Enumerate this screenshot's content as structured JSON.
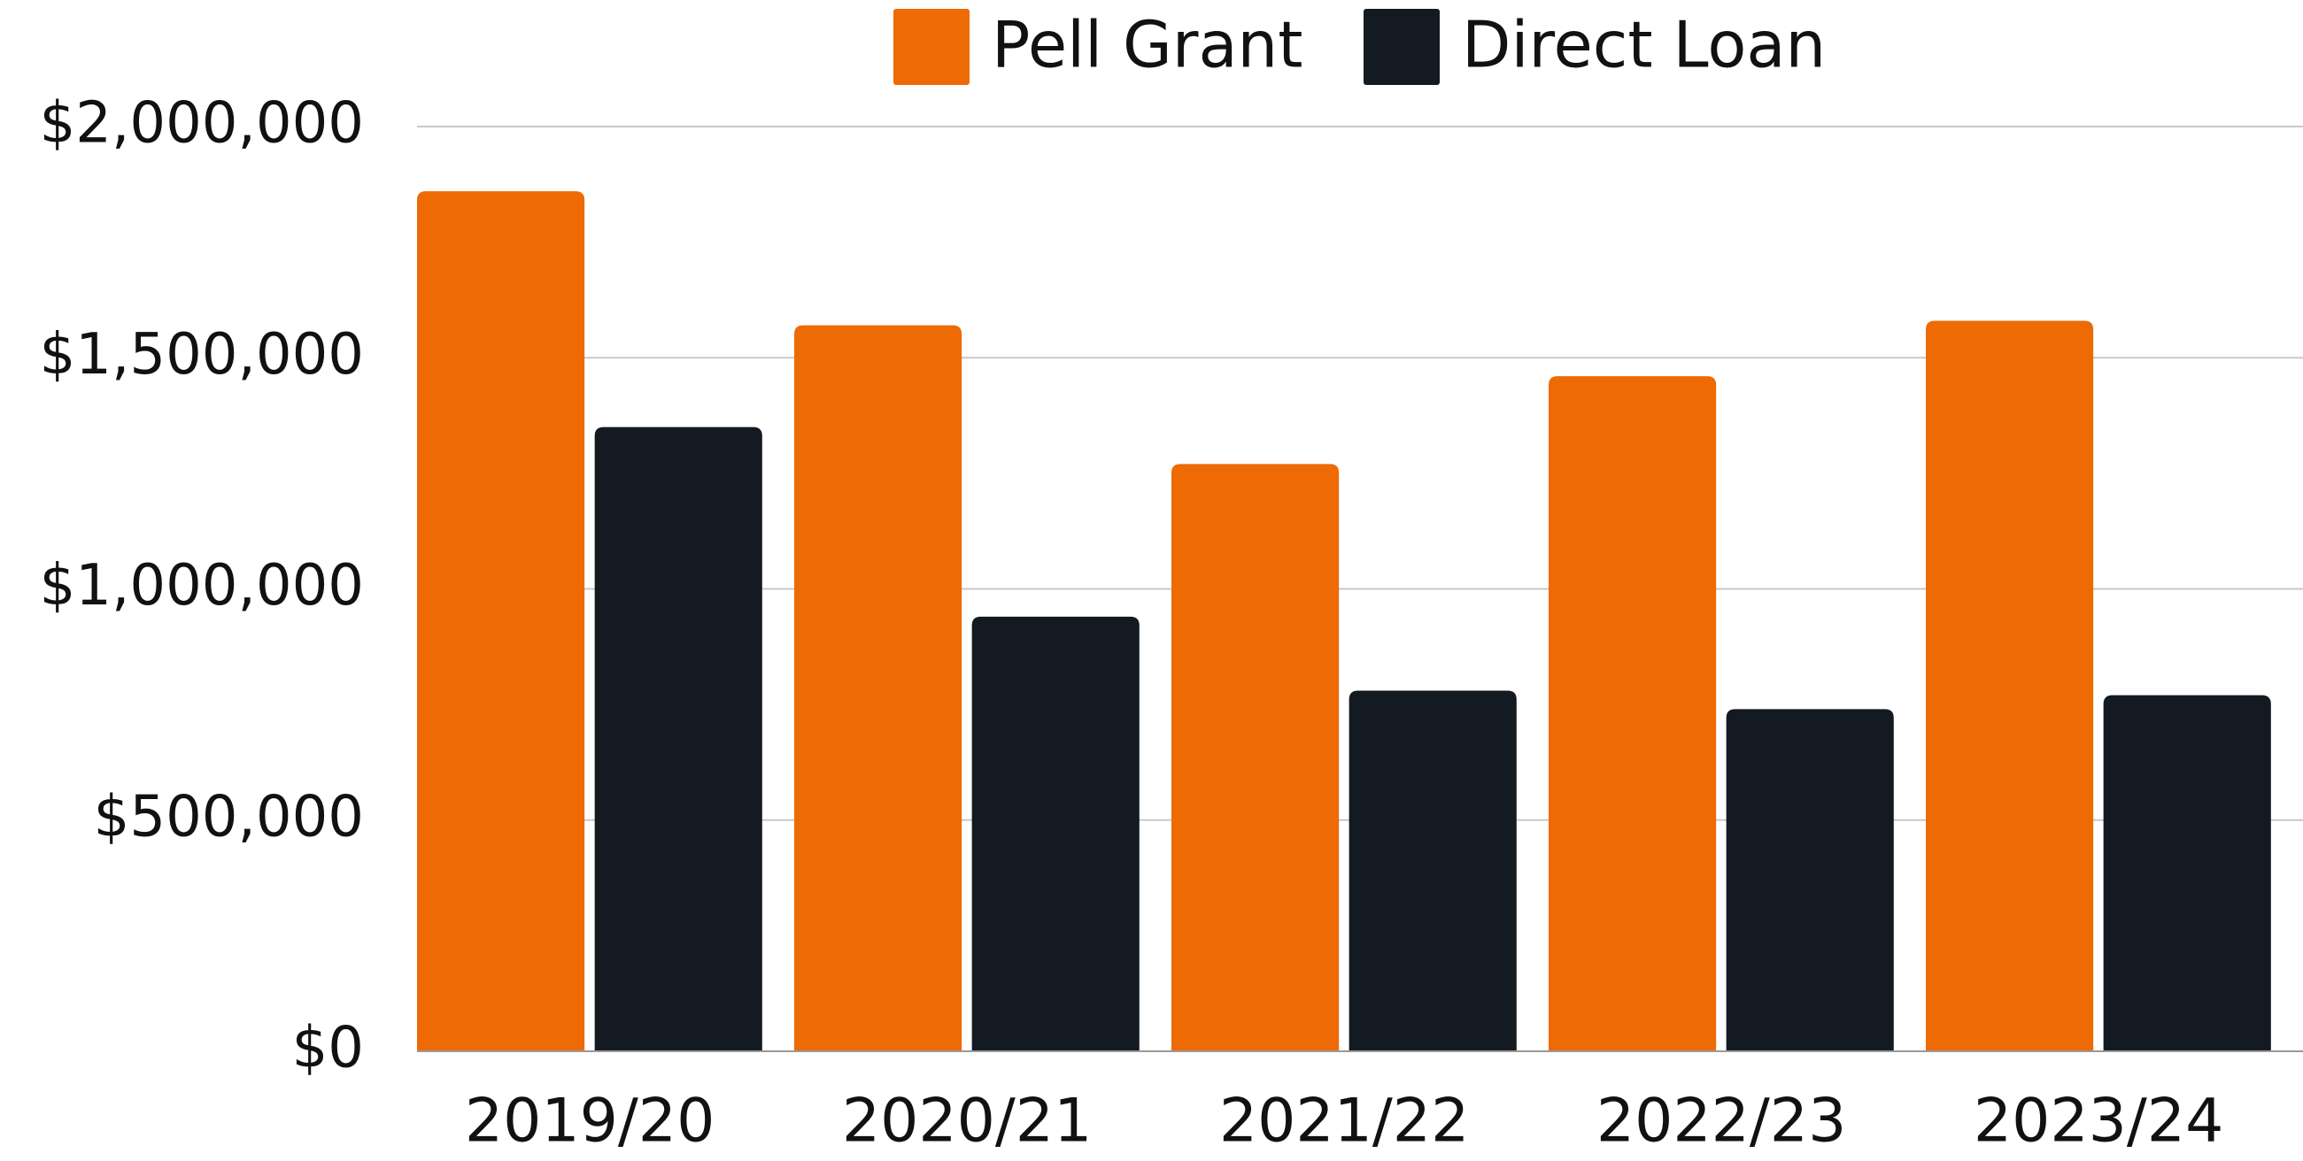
{
  "chart_data": {
    "type": "bar",
    "categories": [
      "2019/20",
      "2020/21",
      "2021/22",
      "2022/23",
      "2023/24"
    ],
    "series": [
      {
        "name": "Pell Grant",
        "color": "#ee6a04",
        "values": [
          1860000,
          1570000,
          1270000,
          1460000,
          1580000
        ]
      },
      {
        "name": "Direct Loan",
        "color": "#131a22",
        "values": [
          1350000,
          940000,
          780000,
          740000,
          770000
        ]
      }
    ],
    "ylim": [
      0,
      2000000
    ],
    "yticks": [
      {
        "value": 0,
        "label": "$0"
      },
      {
        "value": 500000,
        "label": "$500,000"
      },
      {
        "value": 1000000,
        "label": "$1,000,000"
      },
      {
        "value": 1500000,
        "label": "$1,500,000"
      },
      {
        "value": 2000000,
        "label": "$2,000,000"
      }
    ],
    "grid": true,
    "legend": "top"
  }
}
